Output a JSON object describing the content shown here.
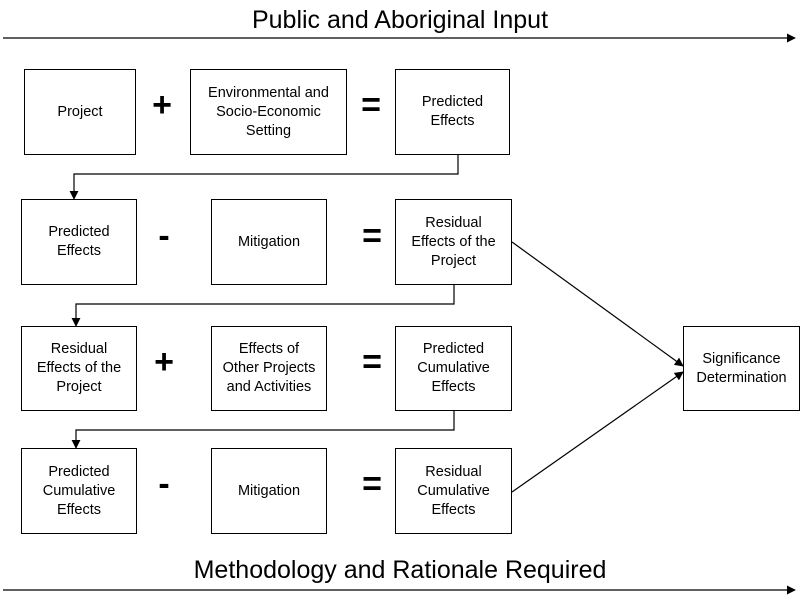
{
  "headings": {
    "top": "Public and Aboriginal Input",
    "bottom": "Methodology and Rationale Required"
  },
  "rows": [
    {
      "a": "Project",
      "op1": "+",
      "b": "Environmental and\nSocio-Economic\nSetting",
      "op2": "=",
      "result": "Predicted\nEffects"
    },
    {
      "a": "Predicted\nEffects",
      "op1": "-",
      "b": "Mitigation",
      "op2": "=",
      "result": "Residual\nEffects of the\nProject"
    },
    {
      "a": "Residual\nEffects of the\nProject",
      "op1": "+",
      "b": "Effects of\nOther Projects\nand Activities",
      "op2": "=",
      "result": "Predicted\nCumulative\nEffects"
    },
    {
      "a": "Predicted\nCumulative\nEffects",
      "op1": "-",
      "b": "Mitigation",
      "op2": "=",
      "result": "Residual\nCumulative\nEffects"
    }
  ],
  "significance": "Significance\nDetermination"
}
